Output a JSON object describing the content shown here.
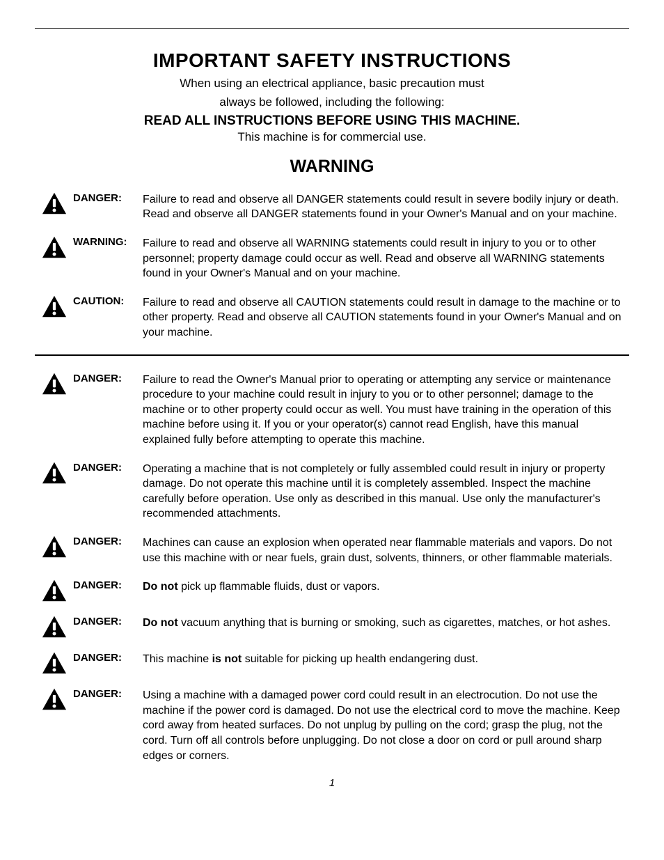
{
  "page": {
    "title": "IMPORTANT SAFETY INSTRUCTIONS",
    "intro_line1": "When using an electrical appliance, basic precaution must",
    "intro_line2": "always be followed, including the following:",
    "read_all": "READ ALL INSTRUCTIONS BEFORE USING THIS MACHINE.",
    "commercial": "This machine is for commercial use.",
    "warning_heading": "WARNING",
    "page_number": "1"
  },
  "style": {
    "background_color": "#ffffff",
    "text_color": "#000000",
    "icon_fill": "#000000",
    "icon_mark_color": "#ffffff",
    "title_fontsize": 28,
    "body_fontsize": 16,
    "label_fontsize": 15,
    "warning_heading_fontsize": 25
  },
  "section_top": [
    {
      "label": "DANGER:",
      "text": "Failure to read and observe all DANGER statements could result in severe bodily injury or death. Read and observe all DANGER statements found in your Owner's Manual and on your machine."
    },
    {
      "label": "WARNING:",
      "text": "Failure to read and observe all WARNING statements could result in injury to you or to other personnel; property damage could occur as well. Read and observe all WARNING statements found in your Owner's Manual and on your machine."
    },
    {
      "label": "CAUTION:",
      "text": "Failure to read and observe all CAUTION statements could result in damage to the machine or to other property. Read and observe all CAUTION statements found in your Owner's Manual and on your machine."
    }
  ],
  "section_bottom": [
    {
      "label": "DANGER:",
      "html": "Failure to read the Owner's Manual prior to operating or attempting any service or maintenance procedure to your machine could result in injury to you or to other personnel; damage to the machine or to other property could occur as well. You must have training in the operation of this machine before using it. If you or your operator(s) cannot read English, have this manual explained fully before attempting to operate this machine."
    },
    {
      "label": "DANGER:",
      "html": "Operating a machine that is not completely or fully assembled could result in injury or property damage. Do not operate this machine until it is completely assembled. Inspect the machine carefully before operation. Use only as described in this manual. Use only the manufacturer's recommended attachments."
    },
    {
      "label": "DANGER:",
      "html": "Machines can cause an explosion when operated near flammable materials and vapors. Do not use this machine with or near fuels, grain dust, solvents, thinners, or other flammable materials."
    },
    {
      "label": "DANGER:",
      "html": "<span class=\"bold\">Do not</span> pick up flammable fluids, dust or vapors."
    },
    {
      "label": "DANGER:",
      "html": "<span class=\"bold\">Do not</span> vacuum anything that is burning or smoking, such as cigarettes, matches, or hot ashes."
    },
    {
      "label": "DANGER:",
      "html": "This machine <span class=\"bold\">is not</span> suitable for picking up health endangering dust."
    },
    {
      "label": "DANGER:",
      "html": "Using a machine with a damaged power cord could result in an electrocution. Do not use the machine if the power cord is damaged. Do not use the electrical cord to move the machine. Keep cord away from heated surfaces. Do not unplug by pulling on the cord; grasp the plug, not the cord. Turn off all controls before unplugging. Do not close a door on cord or pull around sharp edges or corners."
    }
  ]
}
